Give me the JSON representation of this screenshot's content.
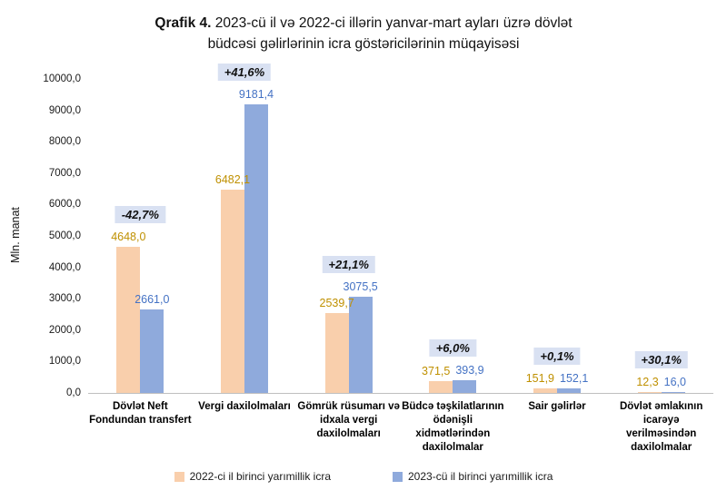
{
  "title": {
    "prefix": "Qrafik 4.",
    "line1": " 2023-cü il və 2022-ci illərin yanvar-mart ayları üzrə dövlət",
    "line2": "büdcəsi gəlirlərinin icra göstəricilərinin müqayisəsi"
  },
  "chart_data": {
    "type": "bar",
    "title": "Qrafik 4. 2023-cü il və 2022-ci illərin yanvar-mart ayları üzrə dövlət büdcəsi gəlirlərinin icra göstəricilərinin müqayisəsi",
    "ylabel": "Mln. manat",
    "xlabel": "",
    "ylim": [
      0,
      10000
    ],
    "grid": false,
    "legend_position": "bottom",
    "yticks": [
      "0,0",
      "1000,0",
      "2000,0",
      "3000,0",
      "4000,0",
      "5000,0",
      "6000,0",
      "7000,0",
      "8000,0",
      "9000,0",
      "10000,0"
    ],
    "categories": [
      "Dövlət Neft Fondundan transfert",
      "Vergi daxilolmaları",
      "Gömrük rüsumarı və idxala vergi daxilolmaları",
      "Büdcə təşkilatlarının ödənişli xidmətlərindən daxilolmalar",
      "Sair gəlirlər",
      "Dövlət əmlakının icarəyə verilməsindən daxilolmalar"
    ],
    "series": [
      {
        "name": "2022-ci il birinci yarımillik icra",
        "color": "#F9CFAC",
        "label_color": "#BF9000",
        "values": [
          4648.0,
          6482.1,
          2539.7,
          371.5,
          151.9,
          12.3
        ],
        "value_labels": [
          "4648,0",
          "6482,1",
          "2539,7",
          "371,5",
          "151,9",
          "12,3"
        ]
      },
      {
        "name": "2023-cü il birinci yarımillik icra",
        "color": "#8FAADC",
        "label_color": "#4472C4",
        "values": [
          2661.0,
          9181.4,
          3075.5,
          393.9,
          152.1,
          16.0
        ],
        "value_labels": [
          "2661,0",
          "9181,4",
          "3075,5",
          "393,9",
          "152,1",
          "16,0"
        ]
      }
    ],
    "change_badges": [
      "-42,7%",
      "+41,6%",
      "+21,1%",
      "+6,0%",
      "+0,1%",
      "+30,1%"
    ]
  },
  "colors": {
    "badge_bg": "#D9E1F2",
    "axis_line": "#BFBFBF"
  }
}
